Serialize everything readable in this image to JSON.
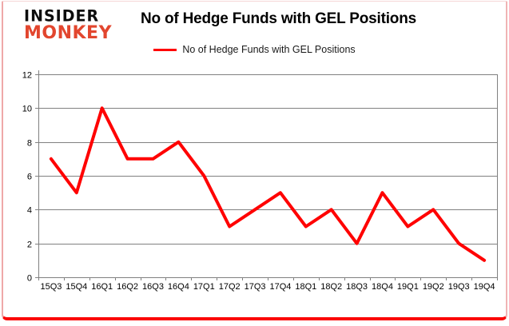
{
  "logo": {
    "line1": "INSIDER",
    "line2": "MONKEY"
  },
  "header": {
    "title": "No of Hedge Funds with GEL Positions"
  },
  "legend": {
    "label": "No of Hedge Funds with GEL Positions"
  },
  "chart_data": {
    "type": "line",
    "title": "No of Hedge Funds with GEL Positions",
    "categories": [
      "15Q3",
      "15Q4",
      "16Q1",
      "16Q2",
      "16Q3",
      "16Q4",
      "17Q1",
      "17Q2",
      "17Q3",
      "17Q4",
      "18Q1",
      "18Q2",
      "18Q3",
      "18Q4",
      "19Q1",
      "19Q2",
      "19Q3",
      "19Q4"
    ],
    "series": [
      {
        "name": "No of Hedge Funds with GEL Positions",
        "color": "#ff0000",
        "values": [
          7,
          5,
          10,
          7,
          7,
          8,
          6,
          3,
          4,
          5,
          3,
          4,
          2,
          5,
          3,
          4,
          2,
          1
        ]
      }
    ],
    "xlabel": "",
    "ylabel": "",
    "ylim": [
      0,
      12
    ],
    "yticks": [
      0,
      2,
      4,
      6,
      8,
      10,
      12
    ],
    "grid": true,
    "legend_position": "top"
  },
  "colors": {
    "line_red": "#ff0000",
    "logo_red": "#e2462e",
    "grid_gray": "#808080",
    "axis_text": "#000000",
    "frame_pink": "#f0b4b4",
    "frame_bottom_red": "#fb0404"
  }
}
